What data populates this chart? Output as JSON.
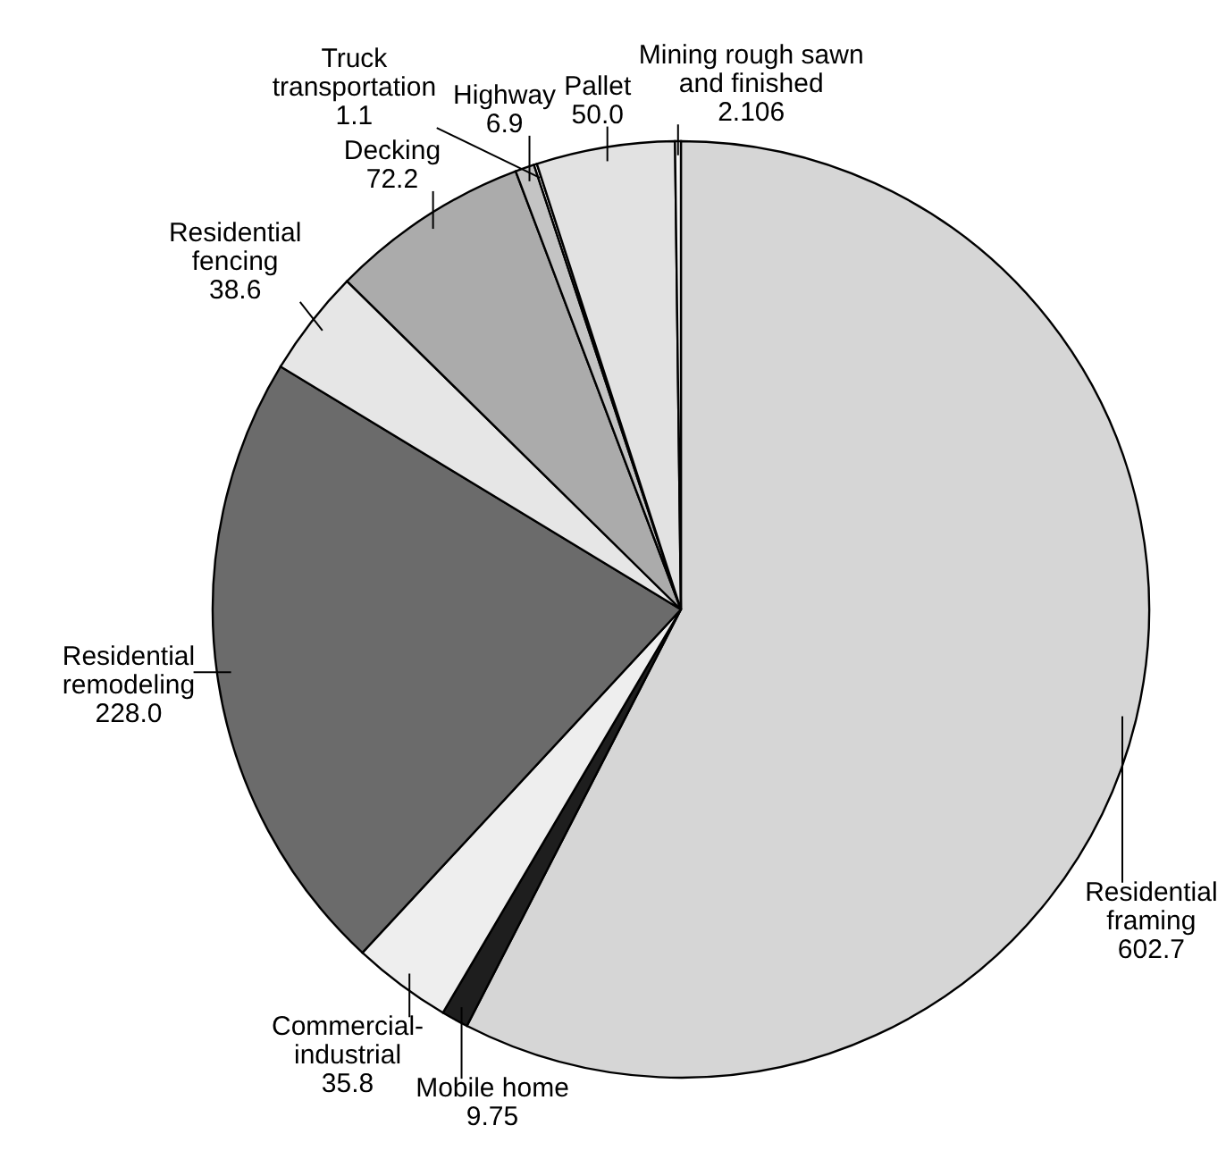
{
  "chart_data": {
    "type": "pie",
    "categories": [
      "Residential framing",
      "Mobile home",
      "Commercial-industrial",
      "Residential remodeling",
      "Residential fencing",
      "Decking",
      "Highway",
      "Truck transportation",
      "Pallet",
      "Mining rough sawn and finished"
    ],
    "values": [
      602.7,
      9.75,
      35.8,
      228.0,
      38.6,
      72.2,
      6.9,
      1.1,
      50.0,
      2.106
    ],
    "value_labels": [
      "602.7",
      "9.75",
      "35.8",
      "228.0",
      "38.6",
      "72.2",
      "6.9",
      "1.1",
      "50.0",
      "2.106"
    ],
    "colors": [
      "#d6d6d6",
      "#1e1e1e",
      "#eeeeee",
      "#6b6b6b",
      "#e6e6e6",
      "#ababab",
      "#c4c4c4",
      "#ffffff",
      "#e2e2e2",
      "#f6f6f6"
    ]
  }
}
